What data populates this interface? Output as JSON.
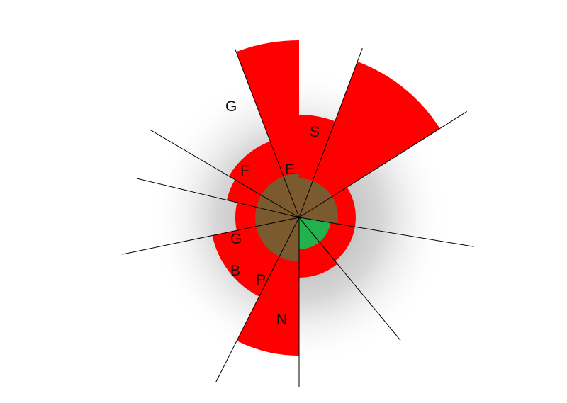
{
  "colors": {
    "wedge": "#ff0000",
    "hub": "#7a5a2e",
    "hub_accent": "#22b14c",
    "ray": "#000000",
    "shadow": "#c0c0c0"
  },
  "segments": [
    {
      "label": "S"
    },
    {
      "label": ""
    },
    {
      "label": ""
    },
    {
      "label": ""
    },
    {
      "label": "N"
    },
    {
      "label": "P"
    },
    {
      "label": "B"
    },
    {
      "label": "G"
    },
    {
      "label": "F"
    },
    {
      "label": "G"
    },
    {
      "label": "E"
    }
  ]
}
